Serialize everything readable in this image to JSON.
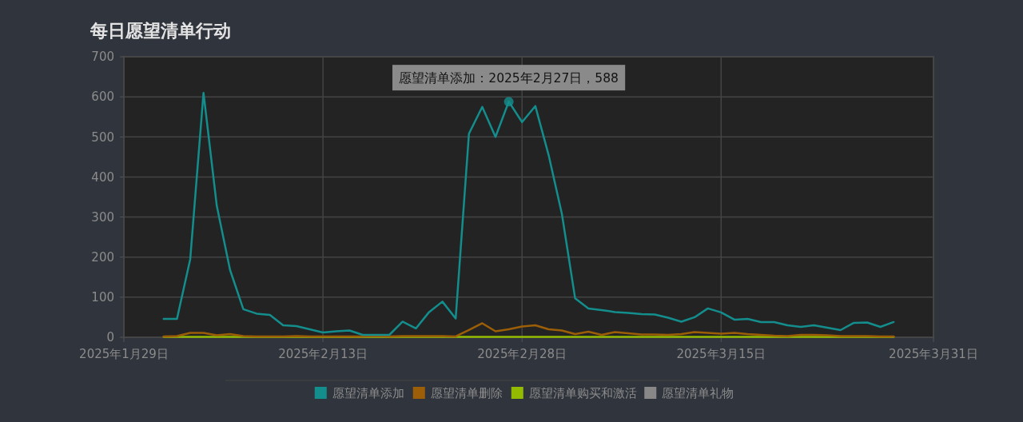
{
  "chart_data": {
    "type": "line",
    "title": "每日愿望清单行动",
    "x": [
      "2025-02-01",
      "2025-02-02",
      "2025-02-03",
      "2025-02-04",
      "2025-02-05",
      "2025-02-06",
      "2025-02-07",
      "2025-02-08",
      "2025-02-09",
      "2025-02-10",
      "2025-02-11",
      "2025-02-12",
      "2025-02-13",
      "2025-02-14",
      "2025-02-15",
      "2025-02-16",
      "2025-02-17",
      "2025-02-18",
      "2025-02-19",
      "2025-02-20",
      "2025-02-21",
      "2025-02-22",
      "2025-02-23",
      "2025-02-24",
      "2025-02-25",
      "2025-02-26",
      "2025-02-27",
      "2025-02-28",
      "2025-03-01",
      "2025-03-02",
      "2025-03-03",
      "2025-03-04",
      "2025-03-05",
      "2025-03-06",
      "2025-03-07",
      "2025-03-08",
      "2025-03-09",
      "2025-03-10",
      "2025-03-11",
      "2025-03-12",
      "2025-03-13",
      "2025-03-14",
      "2025-03-15",
      "2025-03-16",
      "2025-03-17",
      "2025-03-18",
      "2025-03-19",
      "2025-03-20",
      "2025-03-21",
      "2025-03-22",
      "2025-03-23",
      "2025-03-24",
      "2025-03-25",
      "2025-03-26",
      "2025-03-27",
      "2025-03-28"
    ],
    "series": [
      {
        "name": "愿望清单添加",
        "color": "#148d8d",
        "values": [
          46,
          46,
          195,
          610,
          328,
          168,
          70,
          59,
          56,
          30,
          28,
          20,
          12,
          15,
          17,
          6,
          6,
          6,
          39,
          22,
          63,
          89,
          47,
          508,
          575,
          500,
          588,
          537,
          577,
          455,
          308,
          97,
          72,
          68,
          63,
          61,
          58,
          57,
          49,
          39,
          50,
          72,
          62,
          44,
          46,
          38,
          38,
          30,
          26,
          30,
          24,
          18,
          36,
          37,
          26,
          38
        ]
      },
      {
        "name": "愿望清单删除",
        "color": "#9c5f08",
        "values": [
          2,
          3,
          11,
          11,
          5,
          8,
          3,
          2,
          2,
          2,
          3,
          2,
          2,
          2,
          2,
          2,
          3,
          2,
          3,
          3,
          3,
          3,
          2,
          18,
          35,
          15,
          20,
          27,
          30,
          20,
          17,
          8,
          14,
          6,
          13,
          10,
          7,
          7,
          6,
          8,
          13,
          11,
          9,
          11,
          8,
          6,
          4,
          3,
          6,
          6,
          5,
          3,
          3,
          3,
          2,
          2
        ]
      },
      {
        "name": "愿望清单购买和激活",
        "color": "#95bb00",
        "values": [
          1,
          1,
          1,
          1,
          1,
          1,
          1,
          1,
          1,
          1,
          1,
          1,
          1,
          1,
          1,
          1,
          1,
          1,
          1,
          1,
          1,
          1,
          1,
          1,
          1,
          1,
          1,
          1,
          1,
          1,
          1,
          1,
          1,
          1,
          1,
          1,
          1,
          1,
          1,
          1,
          1,
          1,
          1,
          1,
          1,
          1,
          1,
          1,
          1,
          1,
          1,
          1,
          1,
          1,
          1,
          1
        ]
      },
      {
        "name": "愿望清单礼物",
        "color": "#888888",
        "values": [
          null,
          null,
          null,
          null,
          null,
          null,
          null,
          null,
          null,
          null,
          null,
          null,
          null,
          null,
          null,
          null,
          null,
          null,
          null,
          null,
          null,
          null,
          null,
          null,
          null,
          null,
          null,
          null,
          null,
          null,
          null,
          null,
          null,
          null,
          null,
          null,
          null,
          null,
          null,
          null,
          null,
          null,
          null,
          null,
          null,
          null,
          null,
          null,
          null,
          null,
          null,
          null,
          null,
          null,
          null,
          null
        ]
      }
    ],
    "xlim": [
      "2025-01-29",
      "2025-03-31"
    ],
    "xticks": [
      {
        "value": "2025-01-29",
        "label": "2025年1月29日"
      },
      {
        "value": "2025-02-13",
        "label": "2025年2月13日"
      },
      {
        "value": "2025-02-28",
        "label": "2025年2月28日"
      },
      {
        "value": "2025-03-15",
        "label": "2025年3月15日"
      },
      {
        "value": "2025-03-31",
        "label": "2025年3月31日"
      }
    ],
    "ylim": [
      0,
      700
    ],
    "yticks": [
      0,
      100,
      200,
      300,
      400,
      500,
      600,
      700
    ],
    "grid": true,
    "legend": "bottom",
    "marker": "none",
    "line_style": "solid",
    "annotations": [
      {
        "text": "愿望清单添加：2025年2月27日，588",
        "x": "2025-02-27",
        "y": 588
      }
    ]
  }
}
